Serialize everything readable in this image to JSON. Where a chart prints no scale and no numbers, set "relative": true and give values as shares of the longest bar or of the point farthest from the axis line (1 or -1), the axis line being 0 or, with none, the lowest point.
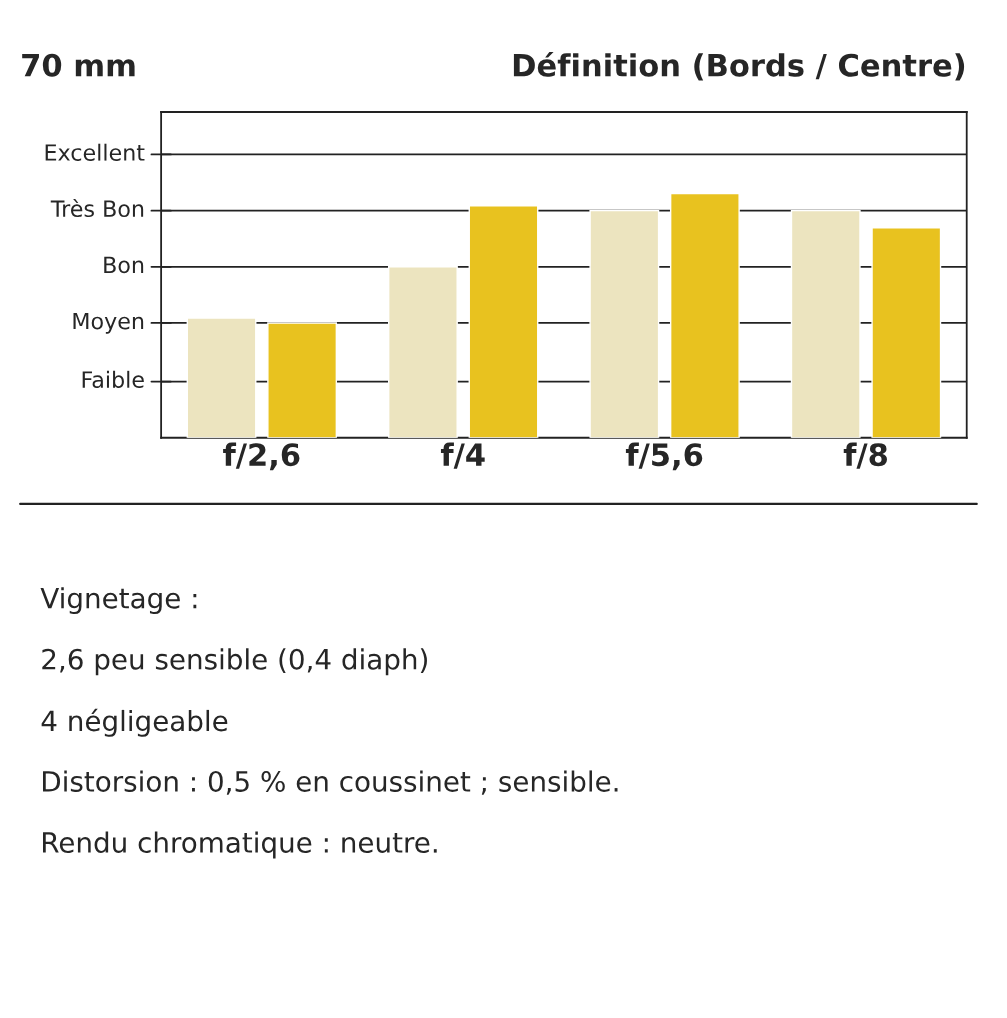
{
  "chart_data": {
    "type": "bar",
    "title": "Définition (Bords / Centre)",
    "subtitle": "70 mm",
    "categories": [
      "f/2,6",
      "f/4",
      "f/5,6",
      "f/8"
    ],
    "relative": true,
    "series": [
      {
        "color": "#ece4bf",
        "values": [
          0.49,
          0.7,
          0.93,
          0.93
        ]
      },
      {
        "color": "#e8c21f",
        "values": [
          0.47,
          0.95,
          1,
          0.86
        ]
      }
    ],
    "ref_lines": [
      {
        "axis": "y",
        "value": 0.23,
        "label": "Faible",
        "color": "#222222"
      },
      {
        "axis": "y",
        "value": 0.47,
        "label": "Moyen",
        "color": "#222222"
      },
      {
        "axis": "y",
        "value": 0.7,
        "label": "Bon",
        "color": "#222222"
      },
      {
        "axis": "y",
        "value": 0.93,
        "label": "Très Bon",
        "color": "#222222"
      },
      {
        "axis": "y",
        "value": 1.16,
        "label": "Excellent",
        "color": "#222222"
      }
    ],
    "annotations": [
      "Vignetage :",
      "2,6 peu sensible (0,4 diaph)",
      "4 négligeable",
      "Distorsion : 0,5 % en coussinet ; sensible.",
      "Rendu chromatique : neutre."
    ]
  }
}
